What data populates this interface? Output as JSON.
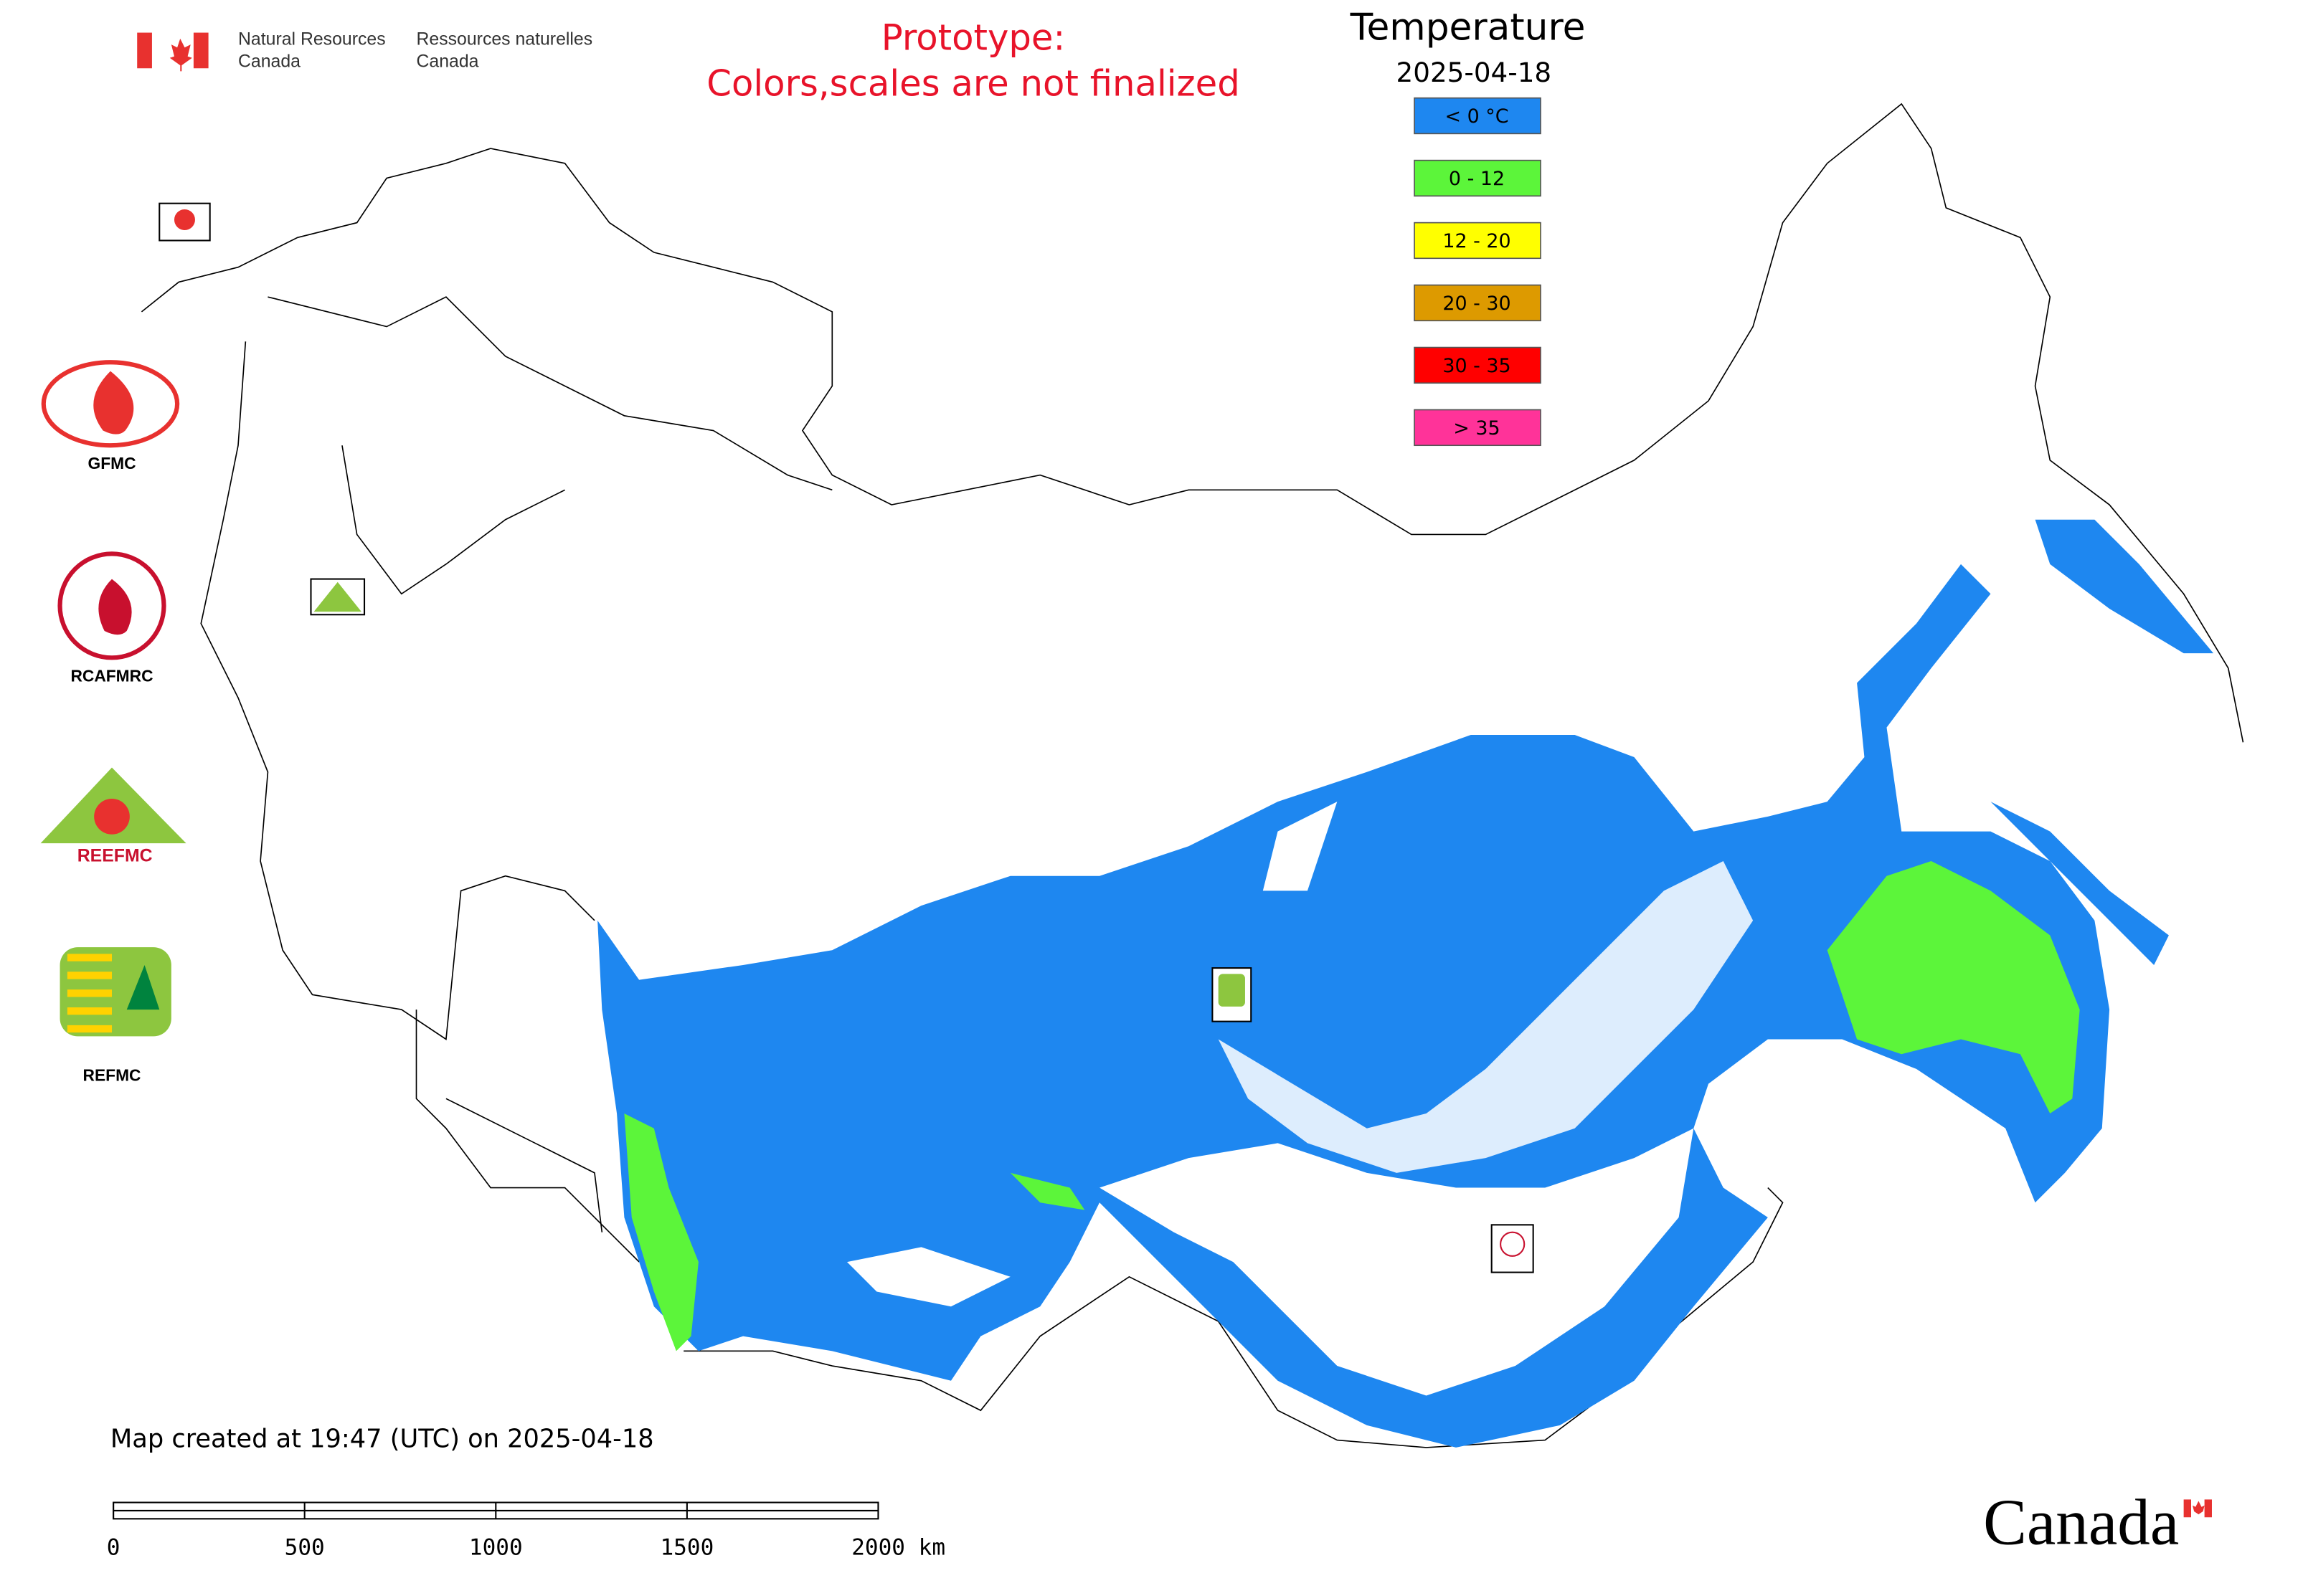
{
  "header": {
    "department_en": [
      "Natural Resources",
      "Canada"
    ],
    "department_fr": [
      "Ressources naturelles",
      "Canada"
    ],
    "notice": [
      "Prototype:",
      "Colors,scales are not finalized"
    ]
  },
  "legend": {
    "title": "Temperature",
    "date": "2025-04-18",
    "items": [
      {
        "label": "< 0 °C",
        "color": "#1e87f0"
      },
      {
        "label": "0 - 12",
        "color": "#5cf53a"
      },
      {
        "label": "12 - 20",
        "color": "#ffff00"
      },
      {
        "label": "20 - 30",
        "color": "#dd9a00"
      },
      {
        "label": "30 - 35",
        "color": "#ff0000"
      },
      {
        "label": "> 35",
        "color": "#ff3399"
      }
    ]
  },
  "logos": [
    "GFMC",
    "RCAFMRC",
    "REEFMC",
    "REFMC"
  ],
  "footer": {
    "created": "Map created at 19:47 (UTC) on 2025-04-18",
    "wordmark": "Canada"
  },
  "scale_bar": {
    "ticks": [
      0,
      500,
      1000,
      1500,
      {
        "value": 2000,
        "label": "2000 km"
      }
    ]
  }
}
